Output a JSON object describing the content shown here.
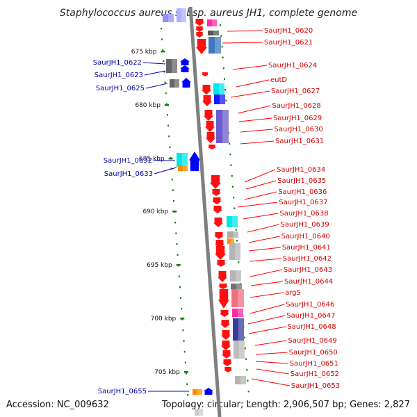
{
  "title": "Staphylococcus aureus subsp. aureus JH1, complete genome",
  "footer": {
    "accession": "Accession: NC_009632",
    "summary": "Topology: circular; Length: 2,906,507 bp; Genes: 2,827"
  },
  "axis_ticks": [
    "675 kbp",
    "680 kbp",
    "685 kbp",
    "690 kbp",
    "695 kbp",
    "700 kbp",
    "705 kbp"
  ],
  "genes_right": [
    "SaurJH1_0620",
    "SaurJH1_0621",
    "SaurJH1_0624",
    "eutD",
    "SaurJH1_0627",
    "SaurJH1_0628",
    "SaurJH1_0629",
    "SaurJH1_0630",
    "SaurJH1_0631",
    "SaurJH1_0634",
    "SaurJH1_0635",
    "SaurJH1_0636",
    "SaurJH1_0637",
    "SaurJH1_0638",
    "SaurJH1_0639",
    "SaurJH1_0640",
    "SaurJH1_0641",
    "SaurJH1_0642",
    "SaurJH1_0643",
    "SaurJH1_0644",
    "argS",
    "SaurJH1_0646",
    "SaurJH1_0647",
    "SaurJH1_0648",
    "SaurJH1_0649",
    "SaurJH1_0650",
    "SaurJH1_0651",
    "SaurJH1_0652",
    "SaurJH1_0653"
  ],
  "genes_left": [
    "SaurJH1_0622",
    "SaurJH1_0623",
    "SaurJH1_0625",
    "SaurJH1_0632",
    "SaurJH1_0633",
    "SaurJH1_0655"
  ],
  "colors": {
    "forward_strand": "#ff0000",
    "reverse_strand": "#0000ff",
    "backbone": "#808080",
    "label_forward": "#d40000",
    "label_reverse": "#0000b4",
    "tick": "#008000"
  }
}
